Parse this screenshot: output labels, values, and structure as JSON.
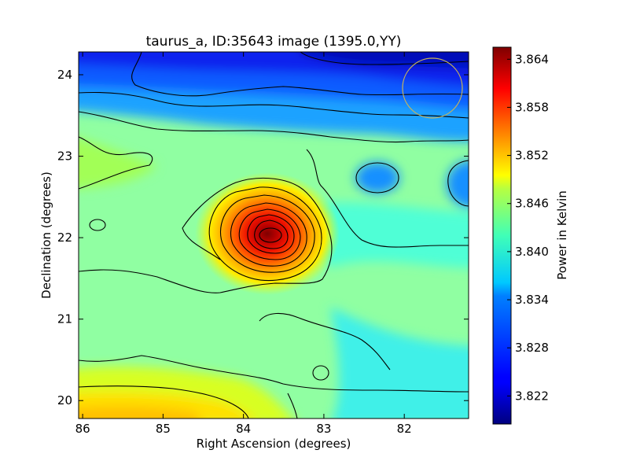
{
  "chart_data": {
    "type": "heatmap",
    "title": "taurus_a, ID:35643 image (1395.0,YY)",
    "xlabel": "Right Ascension (degrees)",
    "ylabel": "Declination (degrees)",
    "xlim": [
      86.05,
      81.2
    ],
    "ylim": [
      19.78,
      24.28
    ],
    "x_ticks": [
      86,
      85,
      84,
      83,
      82
    ],
    "x_tick_labels": [
      "86",
      "85",
      "84",
      "83",
      "82"
    ],
    "y_ticks": [
      20,
      21,
      22,
      23,
      24
    ],
    "y_tick_labels": [
      "20",
      "21",
      "22",
      "23",
      "24"
    ],
    "colorbar": {
      "label": "Power in Kelvin",
      "range": [
        3.8185,
        3.8655
      ],
      "ticks": [
        3.822,
        3.828,
        3.834,
        3.84,
        3.846,
        3.852,
        3.858,
        3.864
      ],
      "tick_labels": [
        "3.822",
        "3.828",
        "3.834",
        "3.840",
        "3.846",
        "3.852",
        "3.858",
        "3.864"
      ],
      "colormap": "jet"
    },
    "peak": {
      "ra": 83.68,
      "dec": 22.05,
      "value": 3.865
    },
    "contours": true,
    "beam_circle": {
      "ra": 81.65,
      "dec": 23.82,
      "color": "#c8b45a"
    }
  }
}
